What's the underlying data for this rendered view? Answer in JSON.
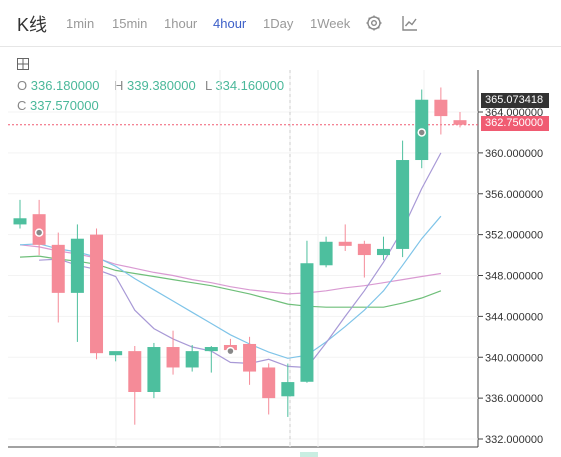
{
  "header": {
    "title": "K线",
    "timeframes": [
      "1min",
      "15min",
      "1hour",
      "4hour",
      "1Day",
      "1Week"
    ],
    "active_timeframe": "4hour",
    "tools": [
      "gear-icon",
      "line-chart-icon"
    ]
  },
  "ohlc": {
    "o_key": "O",
    "o": "336.180000",
    "h_key": "H",
    "h": "339.380000",
    "l_key": "L",
    "l": "334.160000",
    "c_key": "C",
    "c": "337.570000"
  },
  "price_tags": {
    "top": "365.073418",
    "last": "362.750000"
  },
  "colors": {
    "up": "#4dbf9e",
    "down": "#f58b98",
    "accent": "#3b5ec8",
    "ma_fast": "#a899d6",
    "ma_mid": "#7fc4e8",
    "ma_slow": "#6fbf7a",
    "ma_long": "#d99ad2",
    "last_tag": "#f05b72",
    "top_tag": "#333333"
  },
  "chart_data": {
    "type": "candlestick",
    "y_ticks": [
      "332.000000",
      "336.000000",
      "340.000000",
      "344.000000",
      "348.000000",
      "352.000000",
      "356.000000",
      "360.000000",
      "364.000000"
    ],
    "ylim": [
      331.5,
      369.5
    ],
    "candles": [
      {
        "o": 353.0,
        "h": 355.4,
        "l": 352.6,
        "c": 353.6
      },
      {
        "o": 354.0,
        "h": 355.4,
        "l": 350.0,
        "c": 351.0
      },
      {
        "o": 351.0,
        "h": 352.2,
        "l": 343.4,
        "c": 346.3
      },
      {
        "o": 346.3,
        "h": 353.0,
        "l": 341.5,
        "c": 351.6
      },
      {
        "o": 352.0,
        "h": 352.6,
        "l": 339.8,
        "c": 340.4
      },
      {
        "o": 340.2,
        "h": 340.5,
        "l": 339.6,
        "c": 340.6
      },
      {
        "o": 340.6,
        "h": 341.1,
        "l": 333.4,
        "c": 336.6
      },
      {
        "o": 336.6,
        "h": 341.4,
        "l": 336.0,
        "c": 341.0
      },
      {
        "o": 341.0,
        "h": 342.6,
        "l": 338.3,
        "c": 339.0
      },
      {
        "o": 339.0,
        "h": 341.2,
        "l": 338.6,
        "c": 340.6
      },
      {
        "o": 340.6,
        "h": 341.1,
        "l": 338.5,
        "c": 341.0
      },
      {
        "o": 341.2,
        "h": 341.8,
        "l": 340.3,
        "c": 340.7
      },
      {
        "o": 341.3,
        "h": 342.0,
        "l": 337.3,
        "c": 338.6
      },
      {
        "o": 339.0,
        "h": 339.4,
        "l": 334.4,
        "c": 336.0
      },
      {
        "o": 336.18,
        "h": 339.38,
        "l": 334.16,
        "c": 337.57
      },
      {
        "o": 337.6,
        "h": 351.4,
        "l": 337.5,
        "c": 349.2
      },
      {
        "o": 349.0,
        "h": 351.8,
        "l": 348.8,
        "c": 351.3
      },
      {
        "o": 351.3,
        "h": 353.0,
        "l": 350.4,
        "c": 350.9
      },
      {
        "o": 351.1,
        "h": 351.4,
        "l": 347.8,
        "c": 350.0
      },
      {
        "o": 350.0,
        "h": 351.8,
        "l": 349.5,
        "c": 350.6
      },
      {
        "o": 350.6,
        "h": 361.2,
        "l": 349.8,
        "c": 359.3
      },
      {
        "o": 359.3,
        "h": 366.2,
        "l": 358.5,
        "c": 365.2
      },
      {
        "o": 365.2,
        "h": 366.4,
        "l": 361.8,
        "c": 363.6
      },
      {
        "o": 363.2,
        "h": 364.0,
        "l": 362.5,
        "c": 362.75
      }
    ],
    "ma_fast": [
      349.5,
      349.6,
      349.0,
      348.6,
      347.9,
      344.6,
      342.8,
      341.8,
      341.0,
      340.6,
      339.5,
      339.4,
      339.8,
      339.1,
      339.0,
      341.4,
      344.0,
      346.5,
      349.3,
      352.5,
      356.5,
      360.0
    ],
    "ma_mid": [
      351.0,
      351.1,
      350.6,
      350.3,
      349.8,
      348.9,
      347.7,
      346.6,
      345.5,
      344.4,
      343.3,
      342.2,
      341.3,
      340.5,
      339.9,
      340.2,
      341.5,
      343.0,
      344.6,
      346.5,
      349.0,
      351.6,
      353.8
    ],
    "ma_slow": [
      349.8,
      349.9,
      349.6,
      349.4,
      349.1,
      348.5,
      348.2,
      347.9,
      347.6,
      347.3,
      347.0,
      346.6,
      346.2,
      345.7,
      345.2,
      345.0,
      344.9,
      344.9,
      344.9,
      344.9,
      345.3,
      345.8,
      346.5
    ],
    "ma_long": [
      351.0,
      350.8,
      350.4,
      350.1,
      349.7,
      349.1,
      348.7,
      348.3,
      348.0,
      347.6,
      347.3,
      346.9,
      346.6,
      346.4,
      346.2,
      346.3,
      346.5,
      346.8,
      347.0,
      347.3,
      347.6,
      347.9,
      348.2
    ]
  }
}
